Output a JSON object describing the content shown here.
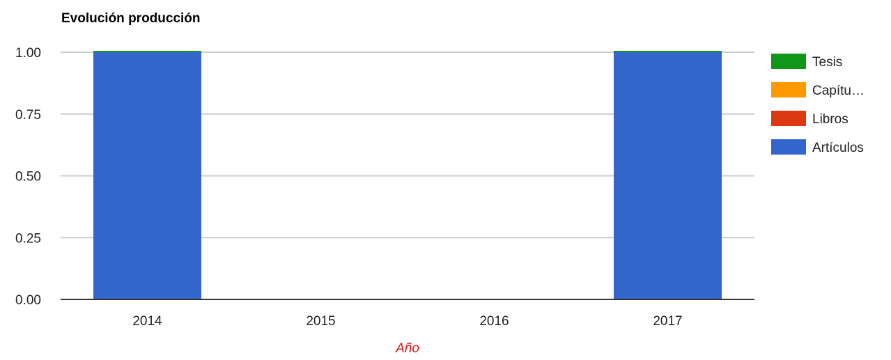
{
  "chart_data": {
    "type": "bar",
    "stacked": true,
    "title": "Evolución producción",
    "xlabel": "Año",
    "ylabel": "",
    "categories": [
      "2014",
      "2015",
      "2016",
      "2017"
    ],
    "ylim": [
      0,
      1
    ],
    "yticks": [
      "0.00",
      "0.25",
      "0.50",
      "0.75",
      "1.00"
    ],
    "grid": true,
    "legend_position": "right",
    "series": [
      {
        "name": "Artículos",
        "values": [
          1,
          0,
          0,
          1
        ],
        "color": "#3366cc"
      },
      {
        "name": "Libros",
        "values": [
          0,
          0,
          0,
          0
        ],
        "color": "#dc3912"
      },
      {
        "name": "Capítu…",
        "values": [
          0,
          0,
          0,
          0
        ],
        "color": "#ff9900"
      },
      {
        "name": "Tesis",
        "values": [
          0,
          0,
          0,
          0
        ],
        "color": "#109618"
      }
    ],
    "legend_order": [
      "Tesis",
      "Capítu…",
      "Libros",
      "Artículos"
    ],
    "xlabel_color": "#dd1111"
  }
}
